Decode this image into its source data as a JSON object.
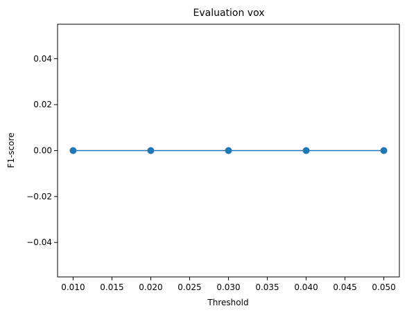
{
  "chart_data": {
    "type": "line",
    "title": "Evaluation vox",
    "xlabel": "Threshold",
    "ylabel": "F1-score",
    "xlim": [
      0.008,
      0.052
    ],
    "ylim": [
      -0.055,
      0.055
    ],
    "xticks": [
      0.01,
      0.015,
      0.02,
      0.025,
      0.03,
      0.035,
      0.04,
      0.045,
      0.05
    ],
    "xtick_labels": [
      "0.010",
      "0.015",
      "0.020",
      "0.025",
      "0.030",
      "0.035",
      "0.040",
      "0.045",
      "0.050"
    ],
    "yticks": [
      -0.04,
      -0.02,
      0.0,
      0.02,
      0.04
    ],
    "ytick_labels": [
      "−0.04",
      "−0.02",
      "0.00",
      "0.02",
      "0.04"
    ],
    "grid": false,
    "series": [
      {
        "color": "#1f77b4",
        "marker": "circle",
        "x": [
          0.01,
          0.02,
          0.03,
          0.04,
          0.05
        ],
        "y": [
          0,
          0,
          0,
          0,
          0
        ]
      }
    ]
  }
}
